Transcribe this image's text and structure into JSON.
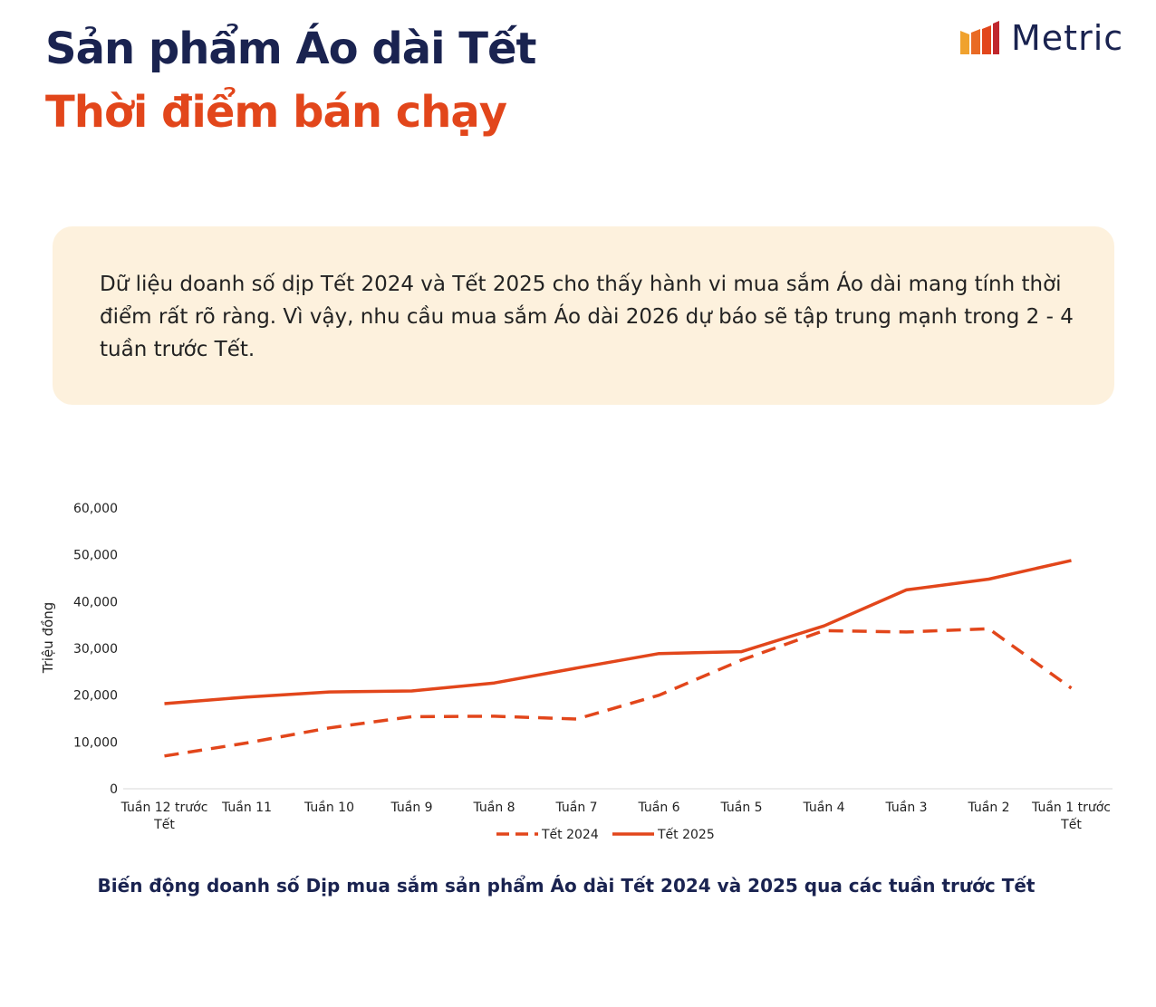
{
  "header": {
    "title_line1": "Sản phẩm Áo dài Tết",
    "title_line2": "Thời điểm bán chạy",
    "brand_name": "Metric",
    "brand_icon": "bar-chart-logo-icon"
  },
  "insight": {
    "text": "Dữ liệu doanh số dịp Tết 2024 và Tết 2025 cho thấy hành vi mua sắm Áo dài mang tính thời điểm rất rõ ràng. Vì vậy, nhu cầu mua sắm Áo dài 2026 dự báo sẽ tập trung mạnh trong 2 - 4 tuần trước Tết."
  },
  "colors": {
    "navy": "#1a2350",
    "accent": "#e2461b",
    "box_bg": "#fdf1dd"
  },
  "chart_data": {
    "type": "line",
    "title": "Biến động doanh số Dịp mua sắm sản phẩm Áo dài Tết 2024 và 2025 qua các tuần trước Tết",
    "xlabel": "",
    "ylabel": "Triệu đồng",
    "categories": [
      "Tuần 12 trước Tết",
      "Tuần 11",
      "Tuần 10",
      "Tuần 9",
      "Tuần 8",
      "Tuần 7",
      "Tuần 6",
      "Tuần 5",
      "Tuần 4",
      "Tuần 3",
      "Tuần 2",
      "Tuần 1 trước Tết"
    ],
    "category_lines": [
      [
        "Tuần 12 trước",
        "Tết"
      ],
      [
        "Tuần 11"
      ],
      [
        "Tuần 10"
      ],
      [
        "Tuần 9"
      ],
      [
        "Tuần 8"
      ],
      [
        "Tuần 7"
      ],
      [
        "Tuần 6"
      ],
      [
        "Tuần 5"
      ],
      [
        "Tuần 4"
      ],
      [
        "Tuần 3"
      ],
      [
        "Tuần 2"
      ],
      [
        "Tuần 1 trước",
        "Tết"
      ]
    ],
    "y_ticks": [
      "0",
      "10,000",
      "20,000",
      "30,000",
      "40,000",
      "50,000",
      "60,000"
    ],
    "ylim": [
      0,
      60000
    ],
    "grid": false,
    "legend_position": "bottom",
    "series": [
      {
        "name": "Tết 2024",
        "style": "dashed",
        "color": "#e2461b",
        "values": [
          7000,
          9800,
          13000,
          15400,
          15500,
          14900,
          20000,
          27500,
          33800,
          33500,
          34200,
          21500
        ]
      },
      {
        "name": "Tết 2025",
        "style": "solid",
        "color": "#e2461b",
        "values": [
          18200,
          19600,
          20700,
          20900,
          22600,
          25800,
          28900,
          29300,
          34800,
          42500,
          44800,
          48800
        ]
      }
    ]
  }
}
